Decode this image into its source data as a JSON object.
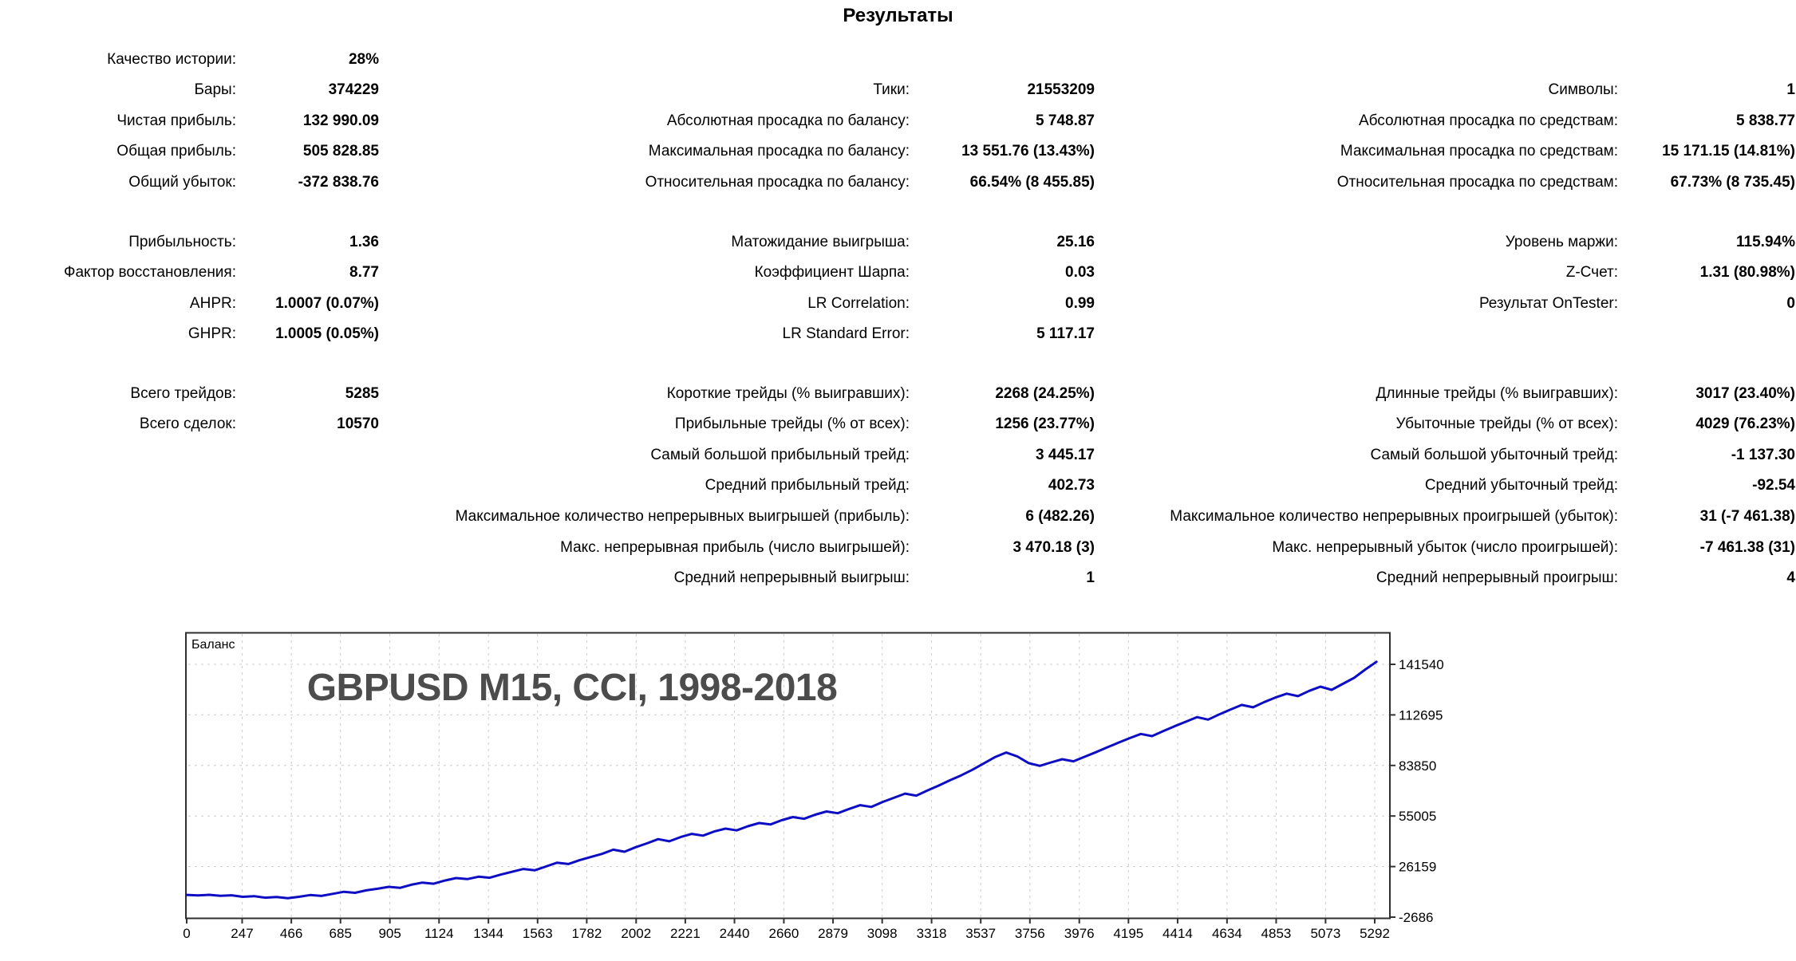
{
  "title": "Результаты",
  "stats": {
    "blocks": [
      {
        "rows": [
          [
            "Качество истории:",
            "28%",
            "",
            "",
            "",
            ""
          ],
          [
            "Бары:",
            "374229",
            "Тики:",
            "21553209",
            "Символы:",
            "1"
          ],
          [
            "Чистая прибыль:",
            "132 990.09",
            "Абсолютная просадка по балансу:",
            "5 748.87",
            "Абсолютная просадка по средствам:",
            "5 838.77"
          ],
          [
            "Общая прибыль:",
            "505 828.85",
            "Максимальная просадка по балансу:",
            "13 551.76 (13.43%)",
            "Максимальная просадка по средствам:",
            "15 171.15 (14.81%)"
          ],
          [
            "Общий убыток:",
            "-372 838.76",
            "Относительная просадка по балансу:",
            "66.54% (8 455.85)",
            "Относительная просадка по средствам:",
            "67.73% (8 735.45)"
          ]
        ]
      },
      {
        "rows": [
          [
            "Прибыльность:",
            "1.36",
            "Матожидание выигрыша:",
            "25.16",
            "Уровень маржи:",
            "115.94%"
          ],
          [
            "Фактор восстановления:",
            "8.77",
            "Коэффициент Шарпа:",
            "0.03",
            "Z-Счет:",
            "1.31 (80.98%)"
          ],
          [
            "AHPR:",
            "1.0007 (0.07%)",
            "LR Correlation:",
            "0.99",
            "Результат OnTester:",
            "0"
          ],
          [
            "GHPR:",
            "1.0005 (0.05%)",
            "LR Standard Error:",
            "5 117.17",
            "",
            ""
          ]
        ]
      },
      {
        "rows": [
          [
            "Всего трейдов:",
            "5285",
            "Короткие трейды (% выигравших):",
            "2268 (24.25%)",
            "Длинные трейды (% выигравших):",
            "3017 (23.40%)"
          ],
          [
            "Всего сделок:",
            "10570",
            "Прибыльные трейды (% от всех):",
            "1256 (23.77%)",
            "Убыточные трейды (% от всех):",
            "4029 (76.23%)"
          ],
          [
            "",
            "",
            "Самый большой прибыльный трейд:",
            "3 445.17",
            "Самый большой убыточный трейд:",
            "-1 137.30"
          ],
          [
            "",
            "",
            "Средний прибыльный трейд:",
            "402.73",
            "Средний убыточный трейд:",
            "-92.54"
          ],
          [
            "",
            "",
            "Максимальное количество непрерывных выигрышей (прибыль):",
            "6 (482.26)",
            "Максимальное количество непрерывных проигрышей (убыток):",
            "31 (-7 461.38)"
          ],
          [
            "",
            "",
            "Макс. непрерывная прибыль (число выигрышей):",
            "3 470.18 (3)",
            "Макс. непрерывный убыток (число проигрышей):",
            "-7 461.38 (31)"
          ],
          [
            "",
            "",
            "Средний непрерывный выигрыш:",
            "1",
            "Средний непрерывный проигрыш:",
            "4"
          ]
        ]
      }
    ]
  },
  "chart_data": {
    "type": "line",
    "series_label": "Баланс",
    "watermark": "GBPUSD M15, CCI, 1998-2018",
    "line_color": "#0d0dc4",
    "grid": true,
    "xlabel": "",
    "ylabel": "",
    "x_ticks": [
      0,
      247,
      466,
      685,
      905,
      1124,
      1344,
      1563,
      1782,
      2002,
      2221,
      2440,
      2660,
      2879,
      3098,
      3318,
      3537,
      3756,
      3976,
      4195,
      4414,
      4634,
      4853,
      5073,
      5292
    ],
    "y_ticks": [
      141540,
      112695,
      83850,
      55005,
      26159,
      -2686
    ],
    "xlim": [
      0,
      5356
    ],
    "ylim": [
      -2686,
      158830
    ],
    "points": [
      [
        0,
        10000
      ],
      [
        50,
        9700
      ],
      [
        100,
        10050
      ],
      [
        150,
        9500
      ],
      [
        200,
        9800
      ],
      [
        250,
        8900
      ],
      [
        300,
        9300
      ],
      [
        350,
        8400
      ],
      [
        400,
        8800
      ],
      [
        450,
        8100
      ],
      [
        500,
        8900
      ],
      [
        550,
        9900
      ],
      [
        600,
        9400
      ],
      [
        650,
        10600
      ],
      [
        700,
        11800
      ],
      [
        750,
        11200
      ],
      [
        800,
        12600
      ],
      [
        850,
        13500
      ],
      [
        900,
        14600
      ],
      [
        950,
        14000
      ],
      [
        1000,
        15800
      ],
      [
        1050,
        17000
      ],
      [
        1100,
        16400
      ],
      [
        1150,
        18200
      ],
      [
        1200,
        19600
      ],
      [
        1250,
        19000
      ],
      [
        1300,
        20400
      ],
      [
        1350,
        19800
      ],
      [
        1400,
        21600
      ],
      [
        1450,
        23200
      ],
      [
        1500,
        24800
      ],
      [
        1550,
        24000
      ],
      [
        1600,
        26200
      ],
      [
        1650,
        28400
      ],
      [
        1700,
        27600
      ],
      [
        1750,
        29800
      ],
      [
        1800,
        31600
      ],
      [
        1850,
        33400
      ],
      [
        1900,
        35800
      ],
      [
        1950,
        34600
      ],
      [
        2000,
        37200
      ],
      [
        2050,
        39400
      ],
      [
        2100,
        41800
      ],
      [
        2150,
        40600
      ],
      [
        2200,
        43000
      ],
      [
        2250,
        44800
      ],
      [
        2300,
        43800
      ],
      [
        2350,
        46200
      ],
      [
        2400,
        47800
      ],
      [
        2450,
        46800
      ],
      [
        2500,
        49200
      ],
      [
        2550,
        51000
      ],
      [
        2600,
        50200
      ],
      [
        2650,
        52600
      ],
      [
        2700,
        54400
      ],
      [
        2750,
        53400
      ],
      [
        2800,
        55800
      ],
      [
        2850,
        57600
      ],
      [
        2900,
        56600
      ],
      [
        2950,
        59000
      ],
      [
        3000,
        61200
      ],
      [
        3050,
        60200
      ],
      [
        3100,
        63000
      ],
      [
        3150,
        65400
      ],
      [
        3200,
        67800
      ],
      [
        3250,
        66600
      ],
      [
        3300,
        69600
      ],
      [
        3350,
        72400
      ],
      [
        3400,
        75400
      ],
      [
        3450,
        78200
      ],
      [
        3500,
        81400
      ],
      [
        3550,
        85000
      ],
      [
        3600,
        88600
      ],
      [
        3650,
        91200
      ],
      [
        3700,
        89000
      ],
      [
        3750,
        85200
      ],
      [
        3800,
        83600
      ],
      [
        3850,
        85600
      ],
      [
        3900,
        87400
      ],
      [
        3950,
        86200
      ],
      [
        4000,
        88800
      ],
      [
        4050,
        91400
      ],
      [
        4100,
        94200
      ],
      [
        4150,
        96800
      ],
      [
        4200,
        99400
      ],
      [
        4250,
        101800
      ],
      [
        4300,
        100600
      ],
      [
        4350,
        103400
      ],
      [
        4400,
        106200
      ],
      [
        4450,
        108800
      ],
      [
        4500,
        111400
      ],
      [
        4550,
        110000
      ],
      [
        4600,
        113000
      ],
      [
        4650,
        115800
      ],
      [
        4700,
        118400
      ],
      [
        4750,
        117000
      ],
      [
        4800,
        120000
      ],
      [
        4850,
        122600
      ],
      [
        4900,
        124800
      ],
      [
        4950,
        123400
      ],
      [
        5000,
        126400
      ],
      [
        5050,
        128800
      ],
      [
        5100,
        127000
      ],
      [
        5150,
        130400
      ],
      [
        5200,
        133800
      ],
      [
        5250,
        138600
      ],
      [
        5300,
        142990
      ]
    ]
  }
}
